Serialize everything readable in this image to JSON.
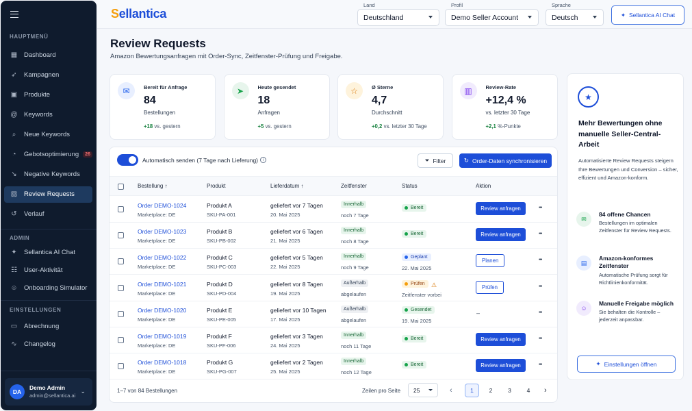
{
  "sidebar": {
    "sections": {
      "main": "HAUPTMENÜ",
      "admin": "ADMIN",
      "settings": "EINSTELLUNGEN"
    },
    "main_items": [
      {
        "label": "Dashboard",
        "icon": "dashboard-icon"
      },
      {
        "label": "Kampagnen",
        "icon": "rocket-icon"
      },
      {
        "label": "Produkte",
        "icon": "box-icon"
      },
      {
        "label": "Keywords",
        "icon": "at-icon"
      },
      {
        "label": "Neue Keywords",
        "icon": "search-icon"
      },
      {
        "label": "Gebotsoptimierung",
        "icon": "speed-icon",
        "badge": "26"
      },
      {
        "label": "Negative Keywords",
        "icon": "trend-down-icon"
      },
      {
        "label": "Review Requests",
        "icon": "image-icon",
        "active": true
      },
      {
        "label": "Verlauf",
        "icon": "history-icon"
      }
    ],
    "admin_items": [
      {
        "label": "Sellantica AI Chat",
        "icon": "sparkle-icon"
      },
      {
        "label": "User-Aktivität",
        "icon": "users-icon"
      },
      {
        "label": "Onboarding Simulator",
        "icon": "person-icon"
      }
    ],
    "settings_items": [
      {
        "label": "Abrechnung",
        "icon": "card-icon"
      },
      {
        "label": "Changelog",
        "icon": "wave-icon"
      }
    ],
    "user": {
      "initials": "DA",
      "name": "Demo Admin",
      "email": "admin@sellantica.ai"
    }
  },
  "topbar": {
    "logo": {
      "first": "S",
      "rest": "ellantica"
    },
    "land": {
      "label": "Land",
      "value": "Deutschland"
    },
    "profil": {
      "label": "Profil",
      "value": "Demo Seller Account"
    },
    "sprache": {
      "label": "Sprache",
      "value": "Deutsch"
    },
    "chat_button": "Sellantica AI Chat"
  },
  "page": {
    "title": "Review Requests",
    "subtitle": "Amazon Bewertungsanfragen mit Order-Sync, Zeitfenster-Prüfung und Freigabe."
  },
  "kpis": [
    {
      "label": "Bereit für Anfrage",
      "value": "84",
      "unit": "Bestellungen",
      "delta": "+18",
      "delta_text": "vs. gestern",
      "icon": "mail-icon",
      "color": "#2563eb",
      "bg": "#e8efff"
    },
    {
      "label": "Heute gesendet",
      "value": "18",
      "unit": "Anfragen",
      "delta": "+5",
      "delta_text": "vs. gestern",
      "icon": "send-icon",
      "color": "#16a34a",
      "bg": "#e7f5ec"
    },
    {
      "label": "Ø Sterne",
      "value": "4,7",
      "unit": "Durchschnitt",
      "delta": "+0,2",
      "delta_text": "vs. letzter 30 Tage",
      "icon": "star-icon",
      "color": "#d97706",
      "bg": "#fef3dc"
    },
    {
      "label": "Review-Rate",
      "value": "+12,4 %",
      "unit": "vs. letzter 30 Tage",
      "delta": "+2,1",
      "delta_text": "%-Punkte",
      "icon": "chart-icon",
      "color": "#7c3aed",
      "bg": "#f1ebfd"
    }
  ],
  "toolbar": {
    "toggle_label": "Automatisch senden (7 Tage nach Lieferung)",
    "filter": "Filter",
    "sync": "Order-Daten synchronisieren"
  },
  "table": {
    "headers": {
      "order": "Bestellung",
      "product": "Produkt",
      "delivery": "Lieferdatum",
      "window": "Zeitfenster",
      "status": "Status",
      "action": "Aktion"
    },
    "rows": [
      {
        "order": "Order DEMO-1024",
        "marketplace": "Marketplace: DE",
        "product": "Produkt A",
        "sku": "SKU-PA-001",
        "delivered": "geliefert vor 7 Tagen",
        "date": "20. Mai 2025",
        "window": "Innerhalb",
        "window_kind": "g",
        "window_note": "noch 7 Tage",
        "status": "Bereit",
        "status_kind": "g",
        "status_note": "",
        "action": "Review anfragen",
        "action_kind": "p"
      },
      {
        "order": "Order DEMO-1023",
        "marketplace": "Marketplace: DE",
        "product": "Produkt B",
        "sku": "SKU-PB-002",
        "delivered": "geliefert vor 6 Tagen",
        "date": "21. Mai 2025",
        "window": "Innerhalb",
        "window_kind": "g",
        "window_note": "noch 8 Tage",
        "status": "Bereit",
        "status_kind": "g",
        "status_note": "",
        "action": "Review anfragen",
        "action_kind": "p"
      },
      {
        "order": "Order DEMO-1022",
        "marketplace": "Marketplace: DE",
        "product": "Produkt C",
        "sku": "SKU-PC-003",
        "delivered": "geliefert vor 5 Tagen",
        "date": "22. Mai 2025",
        "window": "Innerhalb",
        "window_kind": "g",
        "window_note": "noch 9 Tage",
        "status": "Geplant",
        "status_kind": "b",
        "status_note": "22. Mai 2025",
        "action": "Planen",
        "action_kind": "o"
      },
      {
        "order": "Order DEMO-1021",
        "marketplace": "Marketplace: DE",
        "product": "Produkt D",
        "sku": "SKU-PD-004",
        "delivered": "geliefert vor 8 Tagen",
        "date": "19. Mai 2025",
        "window": "Außerhalb",
        "window_kind": "x",
        "window_note": "abgelaufen",
        "status": "Prüfen",
        "status_kind": "y",
        "status_note": "Zeitfenster vorbei",
        "warn": true,
        "action": "Prüfen",
        "action_kind": "o"
      },
      {
        "order": "Order DEMO-1020",
        "marketplace": "Marketplace: DE",
        "product": "Produkt E",
        "sku": "SKU-PE-005",
        "delivered": "geliefert vor 10 Tagen",
        "date": "17. Mai 2025",
        "window": "Außerhalb",
        "window_kind": "x",
        "window_note": "abgelaufen",
        "status": "Gesendet",
        "status_kind": "g",
        "status_note": "19. Mai 2025",
        "action": "–",
        "action_kind": "d"
      },
      {
        "order": "Order DEMO-1019",
        "marketplace": "Marketplace: DE",
        "product": "Produkt F",
        "sku": "SKU-PF-006",
        "delivered": "geliefert vor 3 Tagen",
        "date": "24. Mai 2025",
        "window": "Innerhalb",
        "window_kind": "g",
        "window_note": "noch 11 Tage",
        "status": "Bereit",
        "status_kind": "g",
        "status_note": "",
        "action": "Review anfragen",
        "action_kind": "p"
      },
      {
        "order": "Order DEMO-1018",
        "marketplace": "Marketplace: DE",
        "product": "Produkt G",
        "sku": "SKU-PG-007",
        "delivered": "geliefert vor 2 Tagen",
        "date": "25. Mai 2025",
        "window": "Innerhalb",
        "window_kind": "g",
        "window_note": "noch 12 Tage",
        "status": "Bereit",
        "status_kind": "g",
        "status_note": "",
        "action": "Review anfragen",
        "action_kind": "p"
      }
    ]
  },
  "pagination": {
    "info": "1–7 von 84 Bestellungen",
    "rows_label": "Zeilen pro Seite",
    "rows_value": "25",
    "pages": [
      "1",
      "2",
      "3",
      "4"
    ],
    "current": "1"
  },
  "promo": {
    "heading": "Mehr Bewertungen ohne manuelle Seller-Central-Arbeit",
    "text": "Automatisierte Review Requests steigern Ihre Bewertungen und Conversion – sicher, effizient und Amazon-konform.",
    "features": [
      {
        "title": "84 offene Chancen",
        "desc": "Bestellungen im optimalen Zeitfenster für Review Requests.",
        "icon": "mail-icon",
        "color": "#16a34a",
        "bg": "#e7f5ec"
      },
      {
        "title": "Amazon-konformes Zeitfenster",
        "desc": "Automatische Prüfung sorgt für Richtlinienkonformität.",
        "icon": "calendar-icon",
        "color": "#2563eb",
        "bg": "#e8efff"
      },
      {
        "title": "Manuelle Freigabe möglich",
        "desc": "Sie behalten die Kontrolle – jederzeit anpassbar.",
        "icon": "person-icon",
        "color": "#7c3aed",
        "bg": "#f1ebfd"
      }
    ],
    "button": "Einstellungen öffnen"
  }
}
